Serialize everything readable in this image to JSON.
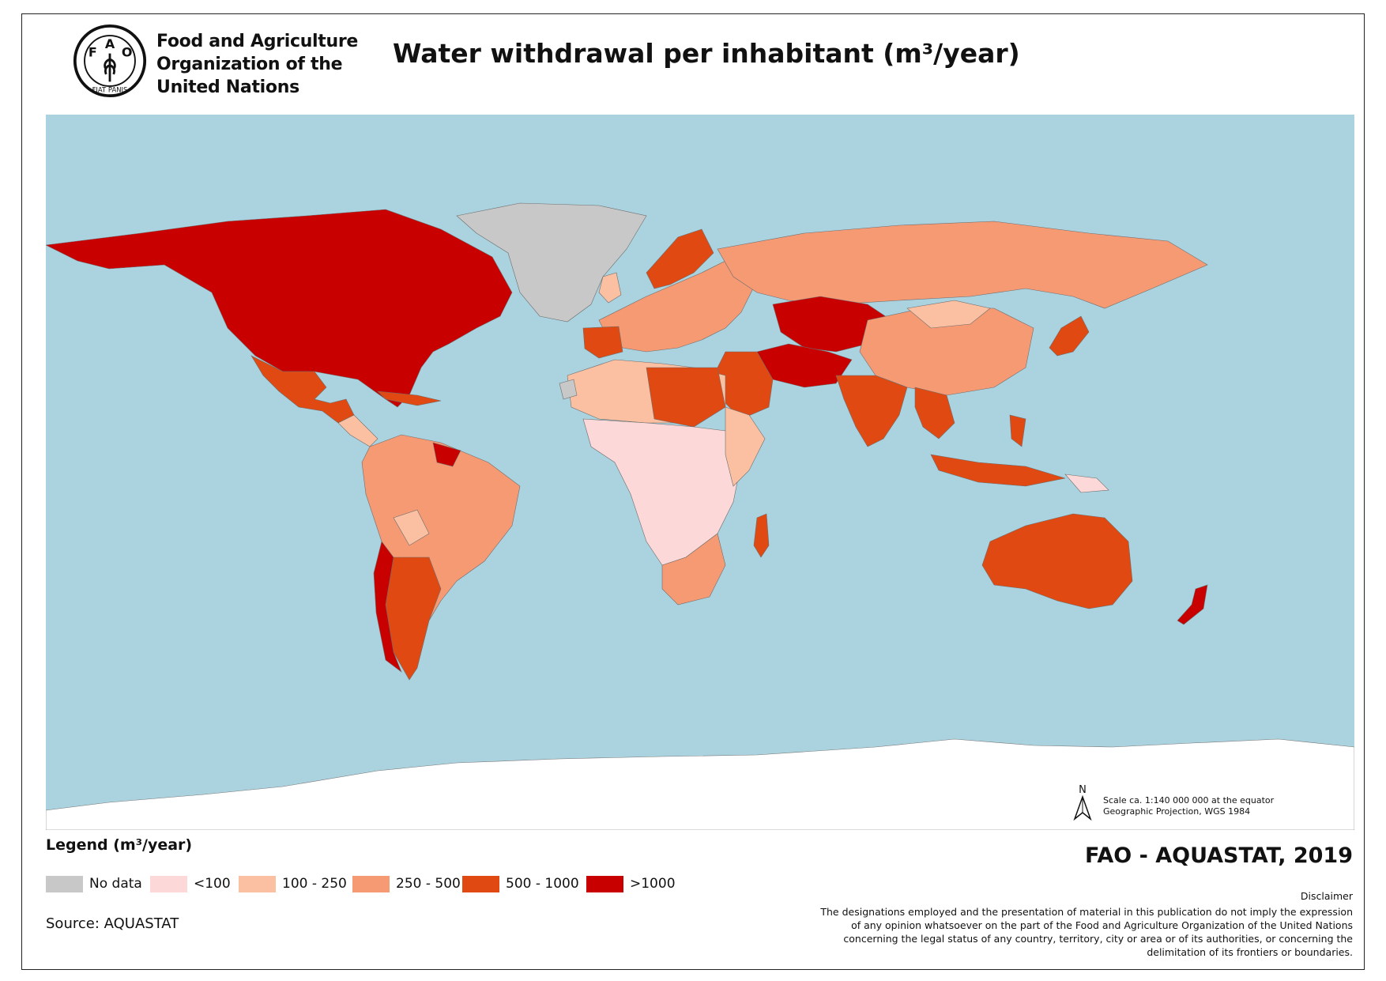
{
  "header": {
    "org_lines": [
      "Food and Agriculture",
      "Organization of the",
      "United Nations"
    ],
    "logo_text": {
      "letters": [
        "F",
        "A",
        "O"
      ],
      "motto": "FIAT PANIS"
    },
    "title": "Water withdrawal per inhabitant (m³/year)"
  },
  "map": {
    "ocean_color": "#abd2df",
    "land_nodata_color": "#c8c8c8",
    "ice_color": "#ffffff",
    "north_label": "N",
    "scale_lines": [
      "Scale ca. 1:140 000 000 at the equator",
      "Geographic Projection, WGS 1984"
    ]
  },
  "legend": {
    "title": "Legend (m³/year)",
    "items": [
      {
        "label": "No data",
        "color": "#c8c8c8"
      },
      {
        "label": "<100",
        "color": "#fcd9d8"
      },
      {
        "label": "100 - 250",
        "color": "#fbc0a1"
      },
      {
        "label": "250 - 500",
        "color": "#f69a74"
      },
      {
        "label": "500 - 1000",
        "color": "#e04a12"
      },
      {
        "label": ">1000",
        "color": "#c80000"
      }
    ]
  },
  "source": "Source: AQUASTAT",
  "credit": "FAO - AQUASTAT, 2019",
  "disclaimer": {
    "title": "Disclaimer",
    "lines": [
      "The designations employed and the presentation of material in this publication do not imply the expression",
      "of any opinion whatsoever on the part of the Food and Agriculture Organization of the United Nations",
      "concerning the legal status of any country, territory, city or area or of its authorities, or concerning the",
      "delimitation of its frontiers or boundaries."
    ]
  }
}
